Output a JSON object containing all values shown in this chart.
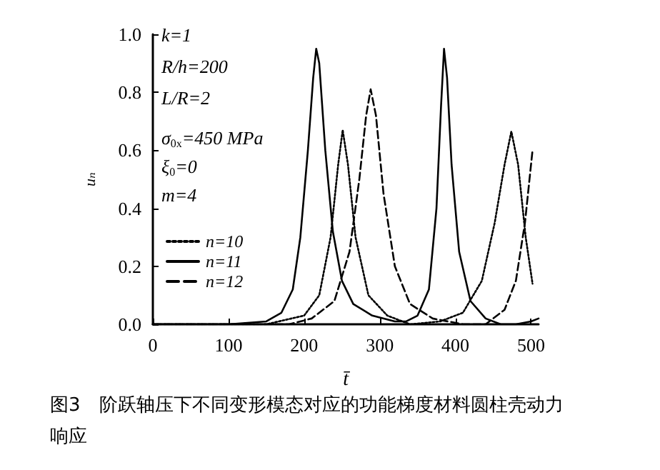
{
  "chart_data": {
    "type": "line",
    "title": "图3　阶跃轴压下不同变形模态对应的功能梯度材料圆柱壳动力响应",
    "xlabel": "t̄",
    "ylabel": "uₙ",
    "xlim": [
      0,
      510
    ],
    "ylim": [
      0,
      1
    ],
    "xticks": [
      0,
      100,
      200,
      300,
      400,
      500
    ],
    "yticks": [
      {
        "value": 0,
        "label": "0.0"
      },
      {
        "value": 0.2,
        "label": "0.2"
      },
      {
        "value": 0.4,
        "label": "0.4"
      },
      {
        "value": 0.6,
        "label": "0.6"
      },
      {
        "value": 0.8,
        "label": "0.8"
      },
      {
        "value": 1,
        "label": "1.0"
      }
    ],
    "grid": false,
    "legend": "left",
    "marker": "none",
    "annotations": [
      "k=1",
      "R/h=200",
      "L/R=2",
      "σ$_{0x}$=450 MPa",
      "ξ$_{0}$=0",
      "m=4"
    ],
    "series": [
      {
        "name": "n=10",
        "color": "#000000",
        "line_style": "dotted",
        "x": [
          0,
          150,
          200,
          220,
          235,
          245,
          251,
          258,
          268,
          285,
          310,
          340,
          380,
          410,
          435,
          452,
          465,
          474,
          483,
          493,
          502
        ],
        "values": [
          0,
          0,
          0.03,
          0.1,
          0.3,
          0.55,
          0.67,
          0.55,
          0.3,
          0.1,
          0.03,
          0,
          0.01,
          0.04,
          0.15,
          0.35,
          0.55,
          0.665,
          0.55,
          0.3,
          0.14
        ]
      },
      {
        "name": "n=11",
        "color": "#000000",
        "line_style": "solid",
        "x": [
          0,
          100,
          150,
          170,
          185,
          195,
          205,
          212,
          216,
          220,
          228,
          238,
          250,
          265,
          290,
          320,
          335,
          350,
          365,
          375,
          381,
          385,
          389,
          395,
          405,
          420,
          440,
          460,
          480,
          500,
          510
        ],
        "values": [
          0,
          0,
          0.01,
          0.04,
          0.12,
          0.3,
          0.6,
          0.85,
          0.95,
          0.9,
          0.6,
          0.32,
          0.15,
          0.07,
          0.03,
          0.01,
          0.01,
          0.03,
          0.12,
          0.4,
          0.75,
          0.95,
          0.85,
          0.55,
          0.25,
          0.08,
          0.02,
          0,
          0,
          0.01,
          0.02
        ]
      },
      {
        "name": "n=12",
        "color": "#000000",
        "line_style": "dashed",
        "x": [
          0,
          180,
          210,
          240,
          260,
          273,
          282,
          288,
          295,
          305,
          320,
          340,
          370,
          410,
          440,
          465,
          480,
          492,
          502
        ],
        "values": [
          0,
          0,
          0.02,
          0.08,
          0.25,
          0.5,
          0.72,
          0.81,
          0.72,
          0.45,
          0.2,
          0.07,
          0.02,
          0,
          0,
          0.05,
          0.15,
          0.35,
          0.6
        ]
      }
    ]
  }
}
